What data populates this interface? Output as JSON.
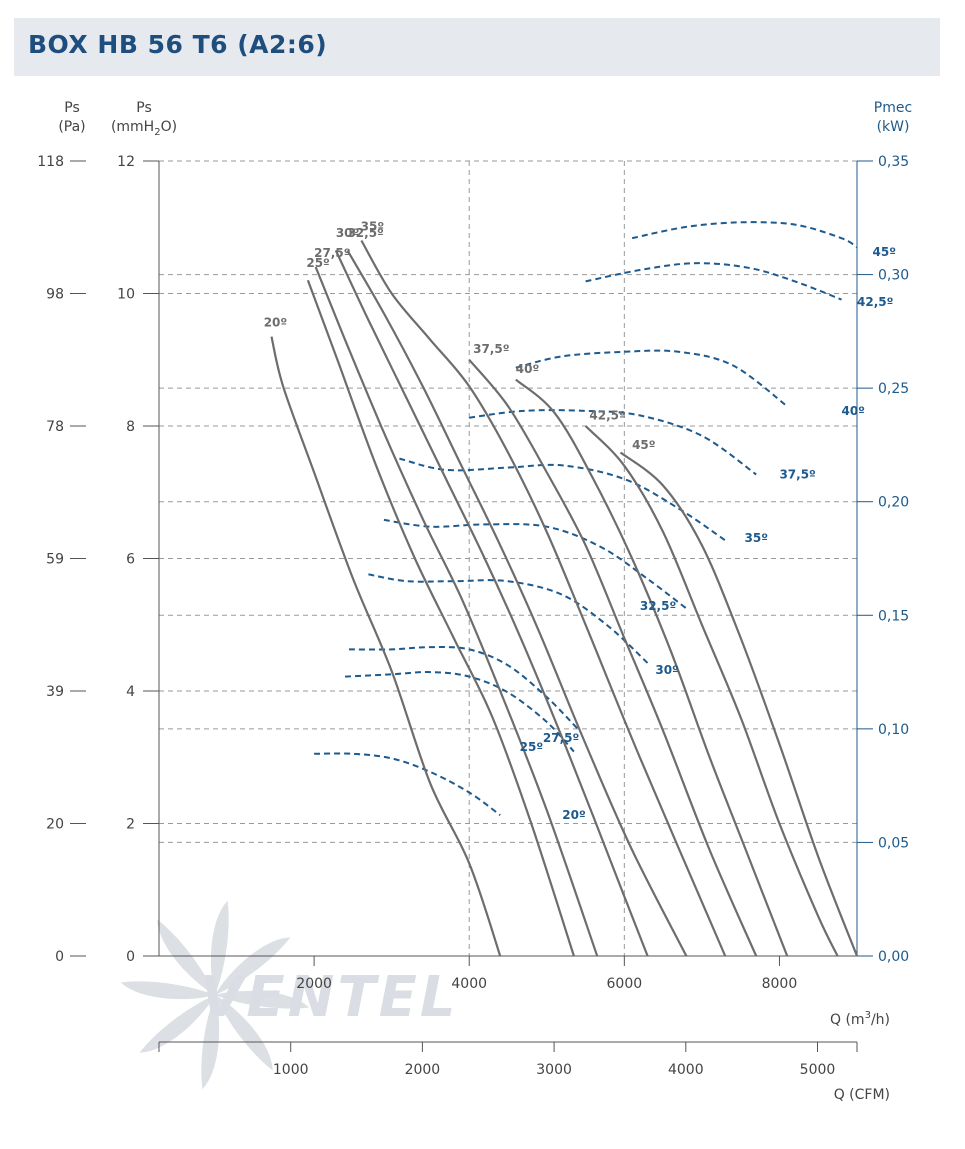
{
  "title": "BOX HB 56 T6 (A2:6)",
  "logo_text": "VENTEL",
  "axes": {
    "ps_pa": {
      "title": "Ps",
      "unit": "(Pa)",
      "ticks": [
        "118",
        "98",
        "78",
        "59",
        "39",
        "20",
        "0"
      ]
    },
    "ps_mmh2o": {
      "title": "Ps",
      "unit_prefix": "(mmH",
      "unit_sub": "2",
      "unit_suffix": "O)",
      "ticks": [
        "12",
        "10",
        "8",
        "6",
        "4",
        "2",
        "0"
      ]
    },
    "pmec": {
      "title": "Pmec",
      "unit": "(kW)",
      "ticks": [
        "0,35",
        "0,30",
        "0,25",
        "0,20",
        "0,15",
        "0,10",
        "0,05",
        "0,00"
      ]
    },
    "q_m3h": {
      "label_prefix": "Q (m",
      "label_sup": "3",
      "label_suffix": "/h)",
      "ticks": [
        "2000",
        "4000",
        "6000",
        "8000"
      ]
    },
    "q_cfm": {
      "label": "Q (CFM)",
      "ticks": [
        "1000",
        "2000",
        "3000",
        "4000",
        "5000"
      ]
    }
  },
  "chart_data": {
    "type": "line",
    "x_unit": "m3/h",
    "x_range": [
      0,
      9000
    ],
    "cfm_range": [
      0,
      5300
    ],
    "y_left_unit": "mmH2O",
    "y_left_range": [
      0,
      12
    ],
    "y_right_unit": "kW",
    "y_right_range": [
      0,
      0.35
    ],
    "grid": true,
    "pressure_curves": [
      {
        "name": "20º",
        "label_at": [
          1350,
          9.5
        ],
        "points": [
          [
            1450,
            9.35
          ],
          [
            1600,
            8.6
          ],
          [
            2000,
            7.3
          ],
          [
            2500,
            5.7
          ],
          [
            3000,
            4.3
          ],
          [
            3500,
            2.6
          ],
          [
            4000,
            1.4
          ],
          [
            4400,
            0.0
          ]
        ]
      },
      {
        "name": "25º",
        "label_at": [
          1900,
          10.4
        ],
        "points": [
          [
            1920,
            10.2
          ],
          [
            2300,
            9.0
          ],
          [
            2800,
            7.4
          ],
          [
            3300,
            6.0
          ],
          [
            3800,
            4.8
          ],
          [
            4300,
            3.6
          ],
          [
            4800,
            2.0
          ],
          [
            5350,
            0.0
          ]
        ]
      },
      {
        "name": "27,5º",
        "label_at": [
          2000,
          10.55
        ],
        "points": [
          [
            2020,
            10.4
          ],
          [
            2400,
            9.3
          ],
          [
            2900,
            7.9
          ],
          [
            3400,
            6.6
          ],
          [
            3900,
            5.4
          ],
          [
            4400,
            4.0
          ],
          [
            5000,
            2.2
          ],
          [
            5650,
            0.0
          ]
        ]
      },
      {
        "name": "30º",
        "label_at": [
          2280,
          10.85
        ],
        "points": [
          [
            2280,
            10.65
          ],
          [
            2700,
            9.6
          ],
          [
            3200,
            8.4
          ],
          [
            3700,
            7.2
          ],
          [
            4200,
            6.0
          ],
          [
            4700,
            4.7
          ],
          [
            5300,
            3.0
          ],
          [
            6000,
            0.9
          ],
          [
            6300,
            0.0
          ]
        ]
      },
      {
        "name": "32,5º",
        "label_at": [
          2430,
          10.85
        ],
        "points": [
          [
            2430,
            10.65
          ],
          [
            2900,
            9.7
          ],
          [
            3400,
            8.6
          ],
          [
            3900,
            7.4
          ],
          [
            4400,
            6.2
          ],
          [
            4900,
            4.9
          ],
          [
            5500,
            3.2
          ],
          [
            6100,
            1.6
          ],
          [
            6800,
            0.0
          ]
        ]
      },
      {
        "name": "35º",
        "label_at": [
          2600,
          10.95
        ],
        "points": [
          [
            2610,
            10.8
          ],
          [
            3000,
            10.0
          ],
          [
            3500,
            9.3
          ],
          [
            4000,
            8.6
          ],
          [
            4500,
            7.6
          ],
          [
            5000,
            6.4
          ],
          [
            5500,
            5.0
          ],
          [
            6200,
            3.0
          ],
          [
            7300,
            0.0
          ]
        ]
      },
      {
        "name": "37,5º",
        "label_at": [
          4050,
          9.1
        ],
        "points": [
          [
            4000,
            9.0
          ],
          [
            4500,
            8.3
          ],
          [
            5000,
            7.3
          ],
          [
            5500,
            6.2
          ],
          [
            6000,
            4.8
          ],
          [
            6500,
            3.4
          ],
          [
            7100,
            1.6
          ],
          [
            7700,
            0.0
          ]
        ]
      },
      {
        "name": "40º",
        "label_at": [
          4600,
          8.8
        ],
        "points": [
          [
            4600,
            8.7
          ],
          [
            5100,
            8.2
          ],
          [
            5600,
            7.2
          ],
          [
            6100,
            6.0
          ],
          [
            6600,
            4.6
          ],
          [
            7100,
            3.0
          ],
          [
            7600,
            1.5
          ],
          [
            8100,
            0.0
          ]
        ]
      },
      {
        "name": "42,5º",
        "label_at": [
          5550,
          8.1
        ],
        "points": [
          [
            5500,
            8.0
          ],
          [
            6000,
            7.4
          ],
          [
            6500,
            6.4
          ],
          [
            7000,
            5.0
          ],
          [
            7500,
            3.6
          ],
          [
            8000,
            2.0
          ],
          [
            8500,
            0.6
          ],
          [
            8750,
            0.0
          ]
        ]
      },
      {
        "name": "45º",
        "label_at": [
          6100,
          7.65
        ],
        "points": [
          [
            5950,
            7.6
          ],
          [
            6500,
            7.1
          ],
          [
            7000,
            6.2
          ],
          [
            7500,
            4.8
          ],
          [
            8000,
            3.2
          ],
          [
            8500,
            1.5
          ],
          [
            9000,
            0.0
          ]
        ]
      }
    ],
    "power_curves": [
      {
        "name": "20º",
        "label_at": [
          5200,
          0.062
        ],
        "points": [
          [
            2000,
            0.089
          ],
          [
            2500,
            0.089
          ],
          [
            3000,
            0.087
          ],
          [
            3500,
            0.081
          ],
          [
            4000,
            0.072
          ],
          [
            4400,
            0.062
          ]
        ]
      },
      {
        "name": "25º",
        "label_at": [
          4650,
          0.092
        ],
        "points": [
          [
            2400,
            0.123
          ],
          [
            3000,
            0.124
          ],
          [
            3500,
            0.125
          ],
          [
            4000,
            0.123
          ],
          [
            4500,
            0.116
          ],
          [
            5000,
            0.103
          ],
          [
            5350,
            0.09
          ]
        ]
      },
      {
        "name": "27,5º",
        "label_at": [
          4950,
          0.096
        ],
        "points": [
          [
            2450,
            0.135
          ],
          [
            3000,
            0.135
          ],
          [
            3500,
            0.136
          ],
          [
            4000,
            0.135
          ],
          [
            4500,
            0.128
          ],
          [
            5000,
            0.114
          ],
          [
            5400,
            0.1
          ]
        ]
      },
      {
        "name": "30º",
        "label_at": [
          6400,
          0.126
        ],
        "points": [
          [
            2700,
            0.168
          ],
          [
            3200,
            0.165
          ],
          [
            3800,
            0.165
          ],
          [
            4500,
            0.165
          ],
          [
            5200,
            0.159
          ],
          [
            5800,
            0.145
          ],
          [
            6300,
            0.129
          ]
        ]
      },
      {
        "name": "32,5º",
        "label_at": [
          6200,
          0.154
        ],
        "points": [
          [
            2900,
            0.192
          ],
          [
            3500,
            0.189
          ],
          [
            4200,
            0.19
          ],
          [
            5000,
            0.189
          ],
          [
            5700,
            0.18
          ],
          [
            6300,
            0.166
          ],
          [
            6800,
            0.153
          ]
        ]
      },
      {
        "name": "35º",
        "label_at": [
          7550,
          0.184
        ],
        "points": [
          [
            3100,
            0.219
          ],
          [
            3700,
            0.214
          ],
          [
            4500,
            0.215
          ],
          [
            5200,
            0.216
          ],
          [
            6000,
            0.21
          ],
          [
            6700,
            0.197
          ],
          [
            7300,
            0.183
          ]
        ]
      },
      {
        "name": "37,5º",
        "label_at": [
          8000,
          0.212
        ],
        "points": [
          [
            4000,
            0.237
          ],
          [
            4700,
            0.24
          ],
          [
            5500,
            0.24
          ],
          [
            6200,
            0.238
          ],
          [
            7000,
            0.229
          ],
          [
            7700,
            0.212
          ]
        ]
      },
      {
        "name": "40º",
        "label_at": [
          8800,
          0.24
        ],
        "points": [
          [
            4600,
            0.259
          ],
          [
            5200,
            0.264
          ],
          [
            6000,
            0.266
          ],
          [
            6700,
            0.266
          ],
          [
            7400,
            0.26
          ],
          [
            8100,
            0.242
          ]
        ]
      },
      {
        "name": "42,5º",
        "label_at": [
          9000,
          0.288
        ],
        "points": [
          [
            5500,
            0.297
          ],
          [
            6200,
            0.302
          ],
          [
            6900,
            0.305
          ],
          [
            7600,
            0.303
          ],
          [
            8200,
            0.297
          ],
          [
            8800,
            0.289
          ]
        ]
      },
      {
        "name": "45º",
        "label_at": [
          9200,
          0.31
        ],
        "points": [
          [
            6100,
            0.316
          ],
          [
            6800,
            0.321
          ],
          [
            7500,
            0.323
          ],
          [
            8200,
            0.322
          ],
          [
            8800,
            0.316
          ],
          [
            9000,
            0.312
          ]
        ]
      }
    ]
  },
  "colors": {
    "pressure_curve": "#6d6d6d",
    "power_curve": "#1d5a8e",
    "grid": "#9a9a9a",
    "title": "#1e4e7d",
    "title_bar": "#e6eaef",
    "logo": "#d9dde3"
  }
}
